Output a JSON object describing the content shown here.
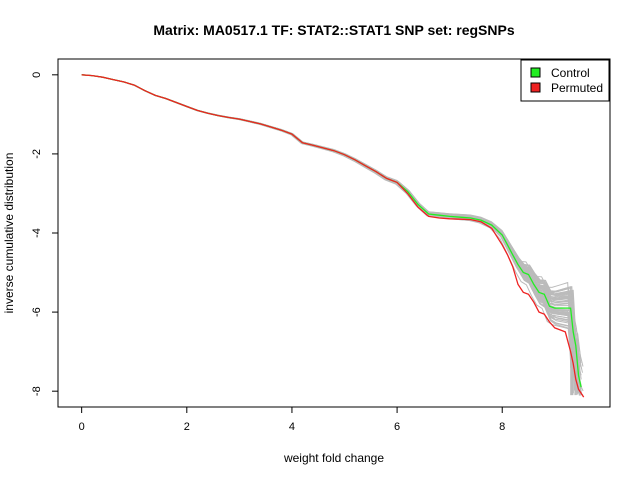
{
  "chart_data": {
    "type": "line",
    "title": "Matrix: MA0517.1 TF: STAT2::STAT1 SNP set: regSNPs",
    "xlabel": "weight fold change",
    "ylabel": "inverse cumulative distribution",
    "xlim": [
      -0.45,
      10.05
    ],
    "ylim": [
      -8.4,
      0.4
    ],
    "x_ticks": [
      0,
      2,
      4,
      6,
      8
    ],
    "y_ticks": [
      0,
      -2,
      -4,
      -6,
      -8
    ],
    "legend": {
      "placement": "top-right",
      "entries": [
        {
          "label": "Control",
          "color": "#22ee22"
        },
        {
          "label": "Permuted",
          "color": "#ee2222"
        }
      ]
    },
    "background_series_color": "#bbbbbb",
    "background_series_count": 60,
    "series": [
      {
        "name": "Control",
        "color": "#22ee22",
        "x": [
          0.0,
          0.2,
          0.4,
          0.6,
          0.8,
          1.0,
          1.2,
          1.4,
          1.6,
          1.8,
          2.0,
          2.2,
          2.4,
          2.6,
          2.8,
          3.0,
          3.2,
          3.4,
          3.6,
          3.8,
          4.0,
          4.2,
          4.4,
          4.6,
          4.8,
          5.0,
          5.2,
          5.4,
          5.6,
          5.8,
          6.0,
          6.2,
          6.4,
          6.6,
          6.8,
          7.0,
          7.2,
          7.4,
          7.6,
          7.8,
          8.0,
          8.1,
          8.2,
          8.3,
          8.4,
          8.5,
          8.6,
          8.7,
          8.8,
          8.9,
          9.0,
          9.1,
          9.2,
          9.3,
          9.35,
          9.4,
          9.45,
          9.5
        ],
        "y": [
          0.0,
          -0.02,
          -0.06,
          -0.12,
          -0.18,
          -0.26,
          -0.4,
          -0.52,
          -0.6,
          -0.7,
          -0.8,
          -0.9,
          -0.97,
          -1.03,
          -1.08,
          -1.12,
          -1.18,
          -1.24,
          -1.32,
          -1.4,
          -1.5,
          -1.72,
          -1.78,
          -1.85,
          -1.92,
          -2.02,
          -2.15,
          -2.3,
          -2.45,
          -2.62,
          -2.72,
          -2.95,
          -3.28,
          -3.52,
          -3.55,
          -3.58,
          -3.6,
          -3.62,
          -3.68,
          -3.8,
          -4.05,
          -4.3,
          -4.55,
          -4.8,
          -5.0,
          -5.05,
          -5.3,
          -5.5,
          -5.55,
          -5.85,
          -5.9,
          -5.9,
          -5.9,
          -5.9,
          -6.5,
          -6.85,
          -7.6,
          -7.9
        ]
      },
      {
        "name": "Permuted",
        "color": "#ee2222",
        "x": [
          0.0,
          0.2,
          0.4,
          0.6,
          0.8,
          1.0,
          1.2,
          1.4,
          1.6,
          1.8,
          2.0,
          2.2,
          2.4,
          2.6,
          2.8,
          3.0,
          3.2,
          3.4,
          3.6,
          3.8,
          4.0,
          4.2,
          4.4,
          4.6,
          4.8,
          5.0,
          5.2,
          5.4,
          5.6,
          5.8,
          6.0,
          6.2,
          6.4,
          6.6,
          6.8,
          7.0,
          7.2,
          7.4,
          7.6,
          7.8,
          8.0,
          8.1,
          8.2,
          8.3,
          8.4,
          8.5,
          8.6,
          8.7,
          8.8,
          8.9,
          9.0,
          9.1,
          9.2,
          9.3,
          9.35,
          9.4,
          9.45,
          9.55
        ],
        "y": [
          0.0,
          -0.02,
          -0.06,
          -0.12,
          -0.18,
          -0.26,
          -0.4,
          -0.52,
          -0.6,
          -0.7,
          -0.8,
          -0.9,
          -0.97,
          -1.03,
          -1.08,
          -1.12,
          -1.18,
          -1.24,
          -1.32,
          -1.4,
          -1.5,
          -1.72,
          -1.78,
          -1.85,
          -1.92,
          -2.02,
          -2.15,
          -2.3,
          -2.45,
          -2.62,
          -2.72,
          -3.0,
          -3.35,
          -3.58,
          -3.62,
          -3.64,
          -3.65,
          -3.66,
          -3.72,
          -3.88,
          -4.3,
          -4.55,
          -4.85,
          -5.3,
          -5.5,
          -5.55,
          -5.75,
          -6.0,
          -6.05,
          -6.25,
          -6.4,
          -6.45,
          -6.5,
          -7.0,
          -7.3,
          -7.7,
          -7.95,
          -8.15
        ]
      }
    ]
  }
}
